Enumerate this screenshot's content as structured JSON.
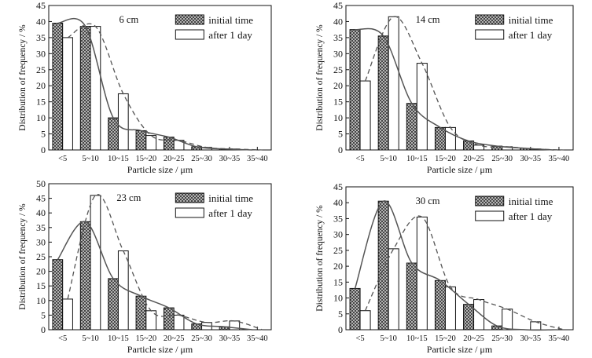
{
  "chart_data": [
    {
      "type": "bar",
      "title": "6 cm",
      "xlabel": "Particle size / μm",
      "ylabel": "Distribution of frequency / %",
      "categories": [
        "<5",
        "5~10",
        "10~15",
        "15~20",
        "20~25",
        "25~30",
        "30~35",
        "35~40"
      ],
      "ylim": [
        0,
        45
      ],
      "yticks": [
        0,
        5,
        10,
        15,
        20,
        25,
        30,
        35,
        40,
        45
      ],
      "legend_position": "top-right",
      "series": [
        {
          "name": "initial time",
          "values": [
            39.5,
            38.5,
            10,
            6,
            4,
            1,
            0.3,
            0
          ]
        },
        {
          "name": "after 1 day",
          "values": [
            35,
            38.5,
            17.5,
            4.5,
            3,
            0.8,
            0.3,
            0
          ]
        }
      ]
    },
    {
      "type": "bar",
      "title": "14 cm",
      "xlabel": "Particle size / μm",
      "ylabel": "Distribution of frequency / %",
      "categories": [
        "<5",
        "5~10",
        "10~15",
        "15~20",
        "20~25",
        "25~30",
        "30~35",
        "35~40"
      ],
      "ylim": [
        0,
        45
      ],
      "yticks": [
        0,
        5,
        10,
        15,
        20,
        25,
        30,
        35,
        40,
        45
      ],
      "legend_position": "top-right",
      "series": [
        {
          "name": "initial time",
          "values": [
            37.5,
            35.5,
            14.5,
            7,
            2.8,
            1.2,
            0.5,
            0
          ]
        },
        {
          "name": "after 1 day",
          "values": [
            21.5,
            41.5,
            27,
            7,
            1.5,
            1,
            0.3,
            0
          ]
        }
      ]
    },
    {
      "type": "bar",
      "title": "23 cm",
      "xlabel": "Particle size / μm",
      "ylabel": "Distribution of frequency / %",
      "categories": [
        "<5",
        "5~10",
        "10~15",
        "15~20",
        "20~25",
        "25~30",
        "30~35",
        "35~40"
      ],
      "ylim": [
        0,
        50
      ],
      "yticks": [
        0,
        5,
        10,
        15,
        20,
        25,
        30,
        35,
        40,
        45,
        50
      ],
      "legend_position": "top-right",
      "series": [
        {
          "name": "initial time",
          "values": [
            24,
            37,
            17.5,
            11.5,
            7.5,
            2,
            1,
            0
          ]
        },
        {
          "name": "after 1 day",
          "values": [
            10.5,
            46,
            27,
            6.5,
            5,
            2.5,
            3,
            0
          ]
        }
      ]
    },
    {
      "type": "bar",
      "title": "30 cm",
      "xlabel": "Particle size / μm",
      "ylabel": "Distribution of frequency / %",
      "categories": [
        "<5",
        "5~10",
        "10~15",
        "15~20",
        "20~25",
        "25~30",
        "30~35",
        "35~40"
      ],
      "ylim": [
        0,
        45
      ],
      "yticks": [
        0,
        5,
        10,
        15,
        20,
        25,
        30,
        35,
        40,
        45
      ],
      "legend_position": "top-right",
      "series": [
        {
          "name": "initial time",
          "values": [
            13,
            40.5,
            21,
            15.5,
            8,
            1.2,
            0,
            0
          ]
        },
        {
          "name": "after 1 day",
          "values": [
            6,
            25.5,
            35.5,
            13.5,
            9.5,
            6.5,
            2.5,
            0
          ]
        }
      ]
    }
  ],
  "colors": {
    "bar_initial_fill": "#444444",
    "bar_after_fill": "#ffffff",
    "axis": "#111111",
    "trend_line": "#555555"
  }
}
